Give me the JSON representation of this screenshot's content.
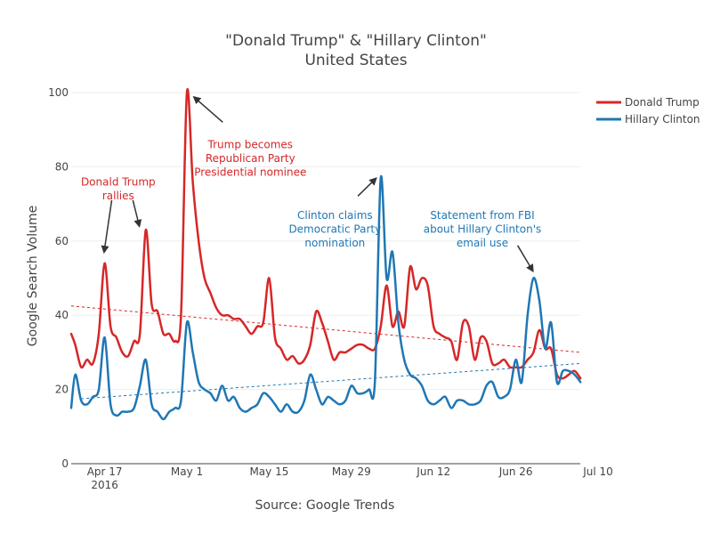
{
  "chart_data": {
    "type": "line",
    "title": [
      "\"Donald Trump\" & \"Hillary Clinton\"",
      "United States"
    ],
    "xlabel": "Source: Google Trends",
    "ylabel": "Google Search Volume",
    "ylim": [
      0,
      100
    ],
    "yticks": [
      0,
      20,
      40,
      60,
      80,
      100
    ],
    "xlim": [
      1.3,
      88
    ],
    "xticks": [
      {
        "t": 7,
        "lines": [
          "Apr 17",
          "2016"
        ]
      },
      {
        "t": 21,
        "lines": [
          "May 1"
        ]
      },
      {
        "t": 35,
        "lines": [
          "May 15"
        ]
      },
      {
        "t": 49,
        "lines": [
          "May 29"
        ]
      },
      {
        "t": 63,
        "lines": [
          "Jun 12"
        ]
      },
      {
        "t": 77,
        "lines": [
          "Jun 26"
        ]
      },
      {
        "t": 91,
        "lines": [
          "Jul 10"
        ]
      }
    ],
    "grid": true,
    "legend_position": "top-right",
    "series": [
      {
        "name": "Donald Trump",
        "color": "#d62728",
        "points": [
          [
            1.3,
            35
          ],
          [
            2,
            32
          ],
          [
            3,
            26
          ],
          [
            4,
            28
          ],
          [
            5,
            27
          ],
          [
            6,
            35
          ],
          [
            7,
            54
          ],
          [
            8,
            37
          ],
          [
            9,
            34
          ],
          [
            10,
            30
          ],
          [
            11,
            29
          ],
          [
            12,
            33
          ],
          [
            13,
            35
          ],
          [
            14,
            63
          ],
          [
            15,
            43
          ],
          [
            16,
            41
          ],
          [
            17,
            35
          ],
          [
            18,
            35
          ],
          [
            19,
            33
          ],
          [
            20,
            40
          ],
          [
            21,
            100
          ],
          [
            22,
            76
          ],
          [
            23,
            60
          ],
          [
            24,
            50
          ],
          [
            25,
            46
          ],
          [
            26,
            42
          ],
          [
            27,
            40
          ],
          [
            28,
            40
          ],
          [
            29,
            39
          ],
          [
            30,
            39
          ],
          [
            31,
            37
          ],
          [
            32,
            35
          ],
          [
            33,
            37
          ],
          [
            34,
            38
          ],
          [
            35,
            50
          ],
          [
            36,
            34
          ],
          [
            37,
            31
          ],
          [
            38,
            28
          ],
          [
            39,
            29
          ],
          [
            40,
            27
          ],
          [
            41,
            28
          ],
          [
            42,
            32
          ],
          [
            43,
            41
          ],
          [
            44,
            38
          ],
          [
            45,
            33
          ],
          [
            46,
            28
          ],
          [
            47,
            30
          ],
          [
            48,
            30
          ],
          [
            49,
            31
          ],
          [
            50,
            32
          ],
          [
            51,
            32
          ],
          [
            52,
            31
          ],
          [
            53,
            31
          ],
          [
            54,
            37
          ],
          [
            55,
            48
          ],
          [
            56,
            37
          ],
          [
            57,
            41
          ],
          [
            58,
            37
          ],
          [
            59,
            53
          ],
          [
            60,
            47
          ],
          [
            61,
            50
          ],
          [
            62,
            48
          ],
          [
            63,
            37
          ],
          [
            64,
            35
          ],
          [
            65,
            34
          ],
          [
            66,
            33
          ],
          [
            67,
            28
          ],
          [
            68,
            38
          ],
          [
            69,
            37
          ],
          [
            70,
            28
          ],
          [
            71,
            34
          ],
          [
            72,
            33
          ],
          [
            73,
            27
          ],
          [
            74,
            27
          ],
          [
            75,
            28
          ],
          [
            76,
            26
          ],
          [
            77,
            26
          ],
          [
            78,
            26
          ],
          [
            79,
            28
          ],
          [
            80,
            30
          ],
          [
            81,
            36
          ],
          [
            82,
            31
          ],
          [
            83,
            31
          ],
          [
            84,
            24
          ],
          [
            85,
            23
          ],
          [
            86,
            24
          ],
          [
            87,
            25
          ],
          [
            88,
            23
          ]
        ]
      },
      {
        "name": "Hillary Clinton",
        "color": "#1f77b4",
        "points": [
          [
            1.3,
            15
          ],
          [
            2,
            24
          ],
          [
            3,
            17
          ],
          [
            4,
            16
          ],
          [
            5,
            18
          ],
          [
            6,
            20
          ],
          [
            7,
            34
          ],
          [
            8,
            16
          ],
          [
            9,
            13
          ],
          [
            10,
            14
          ],
          [
            11,
            14
          ],
          [
            12,
            15
          ],
          [
            13,
            21
          ],
          [
            14,
            28
          ],
          [
            15,
            16
          ],
          [
            16,
            14
          ],
          [
            17,
            12
          ],
          [
            18,
            14
          ],
          [
            19,
            15
          ],
          [
            20,
            17
          ],
          [
            21,
            38
          ],
          [
            22,
            30
          ],
          [
            23,
            22
          ],
          [
            24,
            20
          ],
          [
            25,
            19
          ],
          [
            26,
            17
          ],
          [
            27,
            21
          ],
          [
            28,
            17
          ],
          [
            29,
            18
          ],
          [
            30,
            15
          ],
          [
            31,
            14
          ],
          [
            32,
            15
          ],
          [
            33,
            16
          ],
          [
            34,
            19
          ],
          [
            35,
            18
          ],
          [
            36,
            16
          ],
          [
            37,
            14
          ],
          [
            38,
            16
          ],
          [
            39,
            14
          ],
          [
            40,
            14
          ],
          [
            41,
            17
          ],
          [
            42,
            24
          ],
          [
            43,
            20
          ],
          [
            44,
            16
          ],
          [
            45,
            18
          ],
          [
            46,
            17
          ],
          [
            47,
            16
          ],
          [
            48,
            17
          ],
          [
            49,
            21
          ],
          [
            50,
            19
          ],
          [
            51,
            19
          ],
          [
            52,
            20
          ],
          [
            53,
            22
          ],
          [
            54,
            77
          ],
          [
            55,
            50
          ],
          [
            56,
            57
          ],
          [
            57,
            38
          ],
          [
            58,
            28
          ],
          [
            59,
            24
          ],
          [
            60,
            23
          ],
          [
            61,
            21
          ],
          [
            62,
            17
          ],
          [
            63,
            16
          ],
          [
            64,
            17
          ],
          [
            65,
            18
          ],
          [
            66,
            15
          ],
          [
            67,
            17
          ],
          [
            68,
            17
          ],
          [
            69,
            16
          ],
          [
            70,
            16
          ],
          [
            71,
            17
          ],
          [
            72,
            21
          ],
          [
            73,
            22
          ],
          [
            74,
            18
          ],
          [
            75,
            18
          ],
          [
            76,
            20
          ],
          [
            77,
            28
          ],
          [
            78,
            22
          ],
          [
            79,
            40
          ],
          [
            80,
            50
          ],
          [
            81,
            44
          ],
          [
            82,
            31
          ],
          [
            83,
            38
          ],
          [
            84,
            22
          ],
          [
            85,
            25
          ],
          [
            86,
            25
          ],
          [
            87,
            24
          ],
          [
            88,
            22
          ]
        ]
      }
    ],
    "trendlines": [
      {
        "series": "Donald Trump",
        "color": "#d62728",
        "from": [
          1.3,
          42.5
        ],
        "to": [
          88,
          30
        ]
      },
      {
        "series": "Hillary Clinton",
        "color": "#1f77b4",
        "from": [
          3,
          17.5
        ],
        "to": [
          88,
          27
        ]
      }
    ],
    "annotations": [
      {
        "lines": [
          "Donald Trump",
          "rallies"
        ],
        "color": "#d62728",
        "anchor": [
          9.3,
          75
        ]
      },
      {
        "lines": [
          "Trump becomes",
          "Republican Party",
          "Presidential nominee"
        ],
        "color": "#d62728",
        "anchor": [
          31.8,
          85
        ]
      },
      {
        "lines": [
          "Clinton claims",
          "Democratic Party",
          "nomination"
        ],
        "color": "#1f77b4",
        "anchor": [
          46.2,
          66
        ]
      },
      {
        "lines": [
          "Statement from FBI",
          "about Hillary Clinton's",
          "email use"
        ],
        "color": "#1f77b4",
        "anchor": [
          71.3,
          66
        ]
      }
    ],
    "arrows": [
      {
        "from": [
          8.2,
          71
        ],
        "to": [
          6.9,
          57
        ],
        "color": "#333333"
      },
      {
        "from": [
          11.8,
          71
        ],
        "to": [
          12.9,
          64
        ],
        "color": "#333333"
      },
      {
        "from": [
          27.1,
          92
        ],
        "to": [
          22.2,
          98.8
        ],
        "color": "#333333"
      },
      {
        "from": [
          50.1,
          72.1
        ],
        "to": [
          53.2,
          76.9
        ],
        "color": "#333333"
      },
      {
        "from": [
          77.3,
          58.8
        ],
        "to": [
          79.9,
          51.9
        ],
        "color": "#333333"
      }
    ]
  }
}
